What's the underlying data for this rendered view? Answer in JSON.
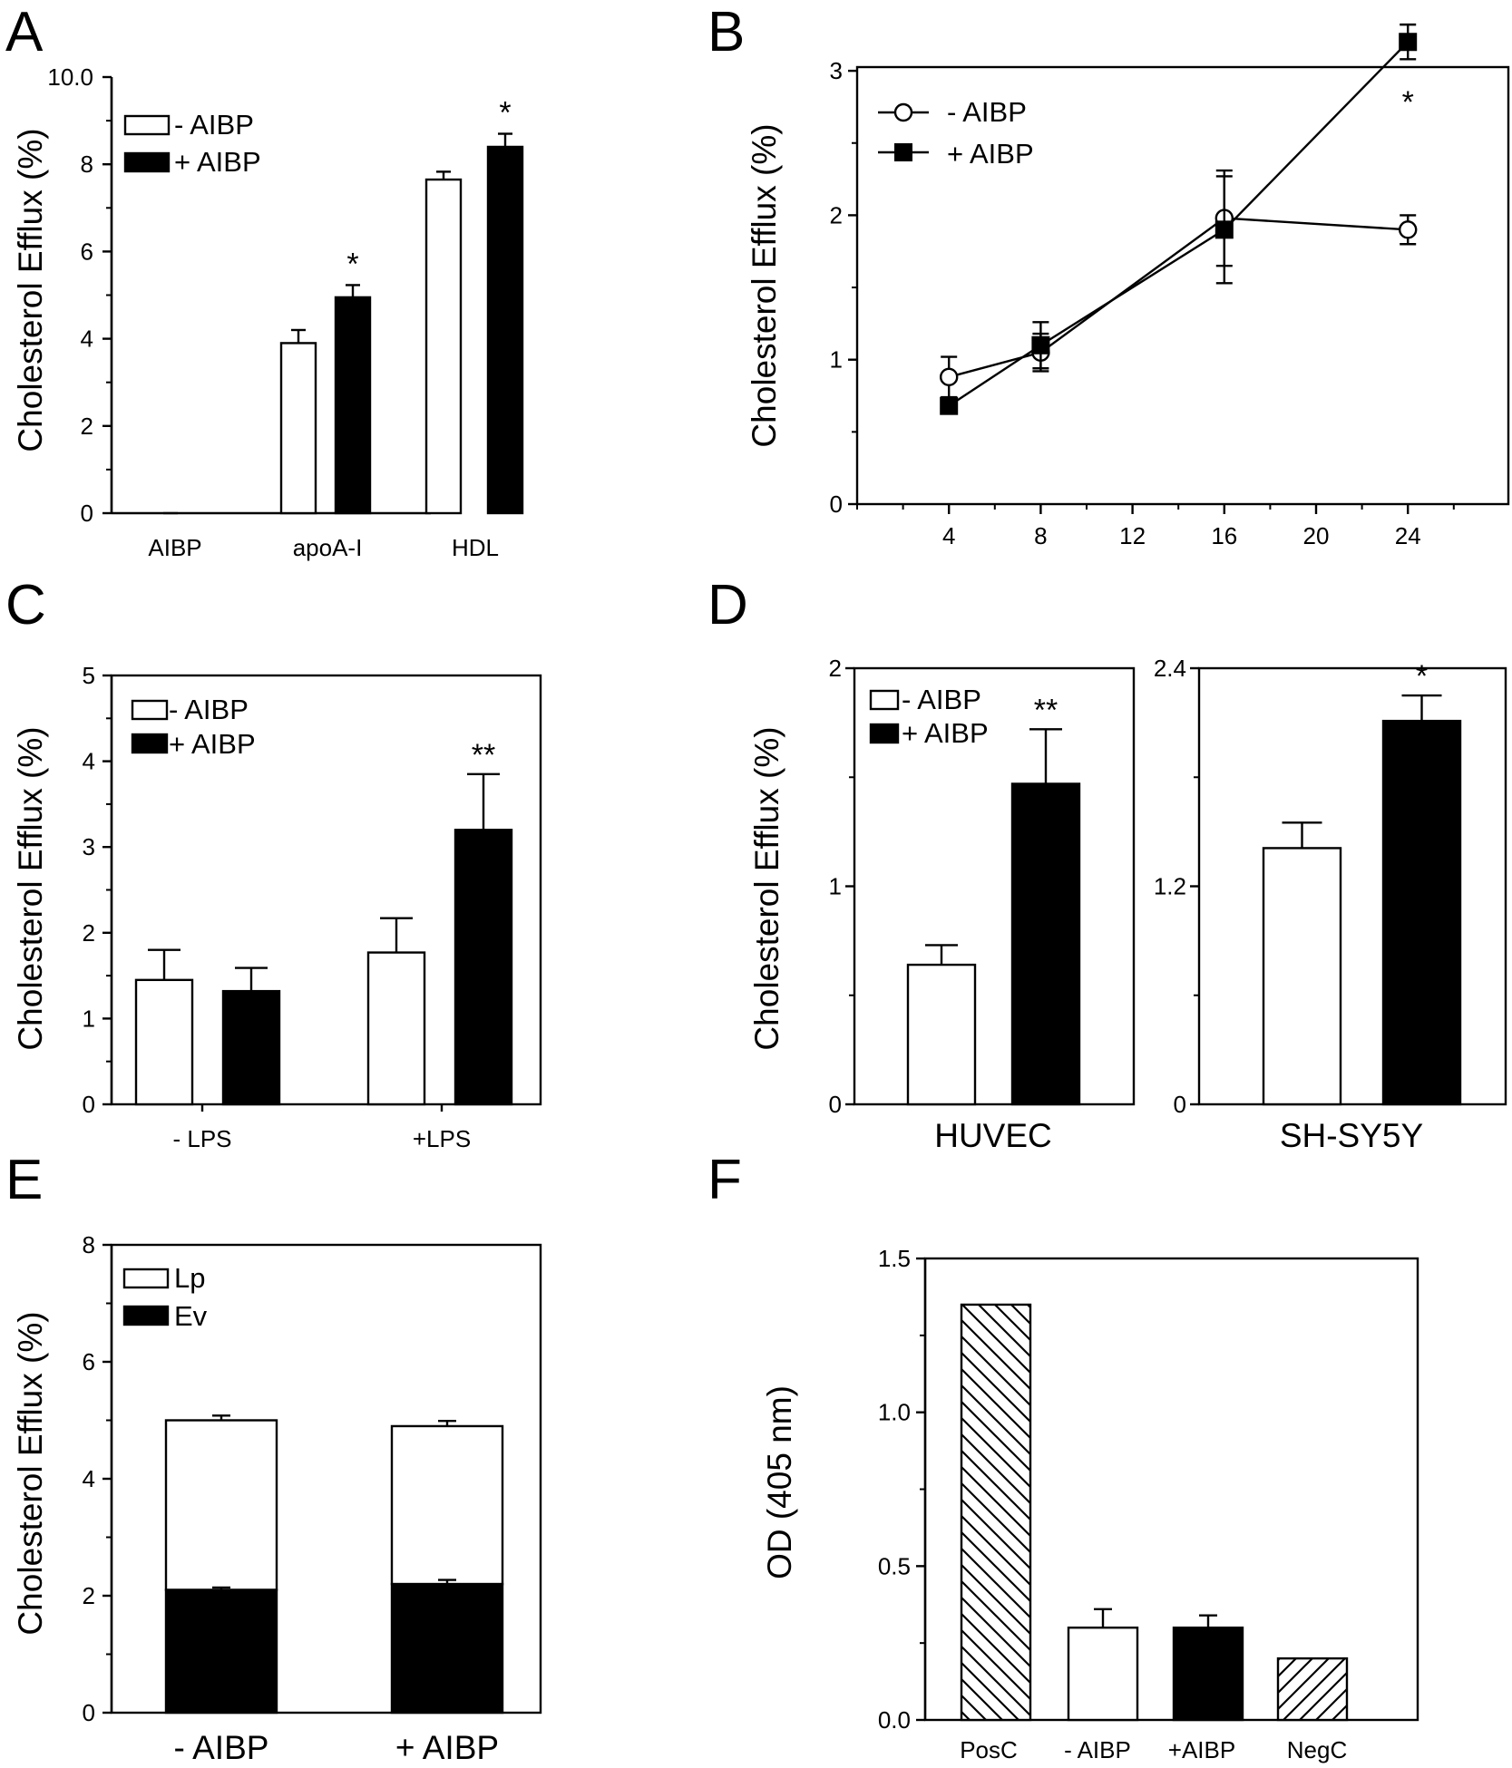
{
  "chart_data": [
    {
      "panel": "A",
      "type": "bar",
      "ylabel": "Cholesterol Efflux (%)",
      "ylim": [
        0,
        10
      ],
      "yticks": [
        0,
        2,
        4,
        6,
        8,
        10
      ],
      "ytick_labels": [
        "0",
        "2",
        "4",
        "6",
        "8",
        "10.0"
      ],
      "categories": [
        "AIBP",
        "apoA-I",
        "HDL"
      ],
      "series": [
        {
          "name": "- AIBP",
          "fill": "white",
          "values": [
            0,
            3.9,
            7.65
          ],
          "errors": [
            0,
            0.3,
            0.18
          ]
        },
        {
          "name": "+ AIBP",
          "fill": "black",
          "values": [
            0,
            4.95,
            8.4
          ],
          "errors": [
            0,
            0.28,
            0.3
          ]
        }
      ],
      "annotations": [
        {
          "category": 1,
          "series": 1,
          "text": "*"
        },
        {
          "category": 2,
          "series": 1,
          "text": "*"
        }
      ],
      "legend": "top-left"
    },
    {
      "panel": "B",
      "type": "line",
      "ylabel": "Cholesterol Efflux (%)",
      "xlim": [
        0,
        28
      ],
      "ylim": [
        0,
        3.5
      ],
      "xticks": [
        4,
        8,
        12,
        16,
        20,
        24
      ],
      "xtick_labels": [
        "4",
        "8",
        "12",
        "16",
        "20",
        "24"
      ],
      "yticks": [
        0,
        1,
        2,
        3
      ],
      "ytick_labels": [
        "0",
        "1",
        "2",
        "3"
      ],
      "series": [
        {
          "name": "- AIBP",
          "marker": "open-circle",
          "x": [
            4,
            8,
            16,
            24
          ],
          "y": [
            0.88,
            1.05,
            1.98,
            1.9
          ],
          "errors": [
            0.14,
            0.13,
            0.33,
            0.1
          ]
        },
        {
          "name": "+ AIBP",
          "marker": "filled-square",
          "x": [
            4,
            8,
            16,
            24
          ],
          "y": [
            0.68,
            1.1,
            1.9,
            3.2
          ],
          "errors": [
            0.05,
            0.16,
            0.37,
            0.12
          ]
        }
      ],
      "annotations": [
        {
          "x": 24,
          "text": "*"
        }
      ],
      "legend": "top-left"
    },
    {
      "panel": "C",
      "type": "bar",
      "ylabel": "Cholesterol Efflux (%)",
      "ylim": [
        0,
        5
      ],
      "yticks": [
        0,
        1,
        2,
        3,
        4,
        5
      ],
      "ytick_labels": [
        "0",
        "1",
        "2",
        "3",
        "4",
        "5"
      ],
      "categories": [
        "- LPS",
        "+LPS"
      ],
      "series": [
        {
          "name": "- AIBP",
          "fill": "white",
          "values": [
            1.45,
            1.77
          ],
          "errors": [
            0.35,
            0.4
          ]
        },
        {
          "name": "+ AIBP",
          "fill": "black",
          "values": [
            1.32,
            3.2
          ],
          "errors": [
            0.27,
            0.65
          ]
        }
      ],
      "annotations": [
        {
          "category": 1,
          "series": 1,
          "text": "**"
        }
      ],
      "legend": "top-left"
    },
    {
      "panel": "D",
      "type": "bar",
      "ylabel": "Cholesterol Efflux (%)",
      "subplots": [
        {
          "category": "HUVEC",
          "ylim": [
            0,
            2
          ],
          "yticks": [
            0,
            1,
            2
          ],
          "ytick_labels": [
            "0",
            "1",
            "2"
          ],
          "series": [
            {
              "name": "- AIBP",
              "fill": "white",
              "value": 0.64,
              "error": 0.09
            },
            {
              "name": "+ AIBP",
              "fill": "black",
              "value": 1.47,
              "error": 0.25
            }
          ],
          "annotation": "**"
        },
        {
          "category": "SH-SY5Y",
          "ylim": [
            0,
            2.4
          ],
          "yticks": [
            0,
            1.2,
            2.4
          ],
          "ytick_labels": [
            "0",
            "1.2",
            "2.4"
          ],
          "series": [
            {
              "name": "- AIBP",
              "fill": "white",
              "value": 1.41,
              "error": 0.14
            },
            {
              "name": "+ AIBP",
              "fill": "black",
              "value": 2.11,
              "error": 0.14
            }
          ],
          "annotation": "*"
        }
      ],
      "legend": "top-left"
    },
    {
      "panel": "E",
      "type": "stacked-bar",
      "ylabel": "Cholesterol Efflux (%)",
      "ylim": [
        0,
        8
      ],
      "yticks": [
        0,
        2,
        4,
        6,
        8
      ],
      "ytick_labels": [
        "0",
        "2",
        "4",
        "6",
        "8"
      ],
      "categories": [
        "- AIBP",
        "+ AIBP"
      ],
      "series": [
        {
          "name": "Ev",
          "fill": "black",
          "values": [
            2.1,
            2.2
          ],
          "errors": [
            0.04,
            0.07
          ]
        },
        {
          "name": "Lp",
          "fill": "white",
          "values": [
            2.9,
            2.7
          ],
          "errors": [
            0.08,
            0.09
          ]
        }
      ],
      "totals": [
        5.0,
        4.9
      ],
      "legend": "top-left"
    },
    {
      "panel": "F",
      "type": "bar",
      "ylabel": "OD (405 nm)",
      "ylim": [
        0,
        1.5
      ],
      "yticks": [
        0,
        0.5,
        1.0,
        1.5
      ],
      "ytick_labels": [
        "0.0",
        "0.5",
        "1.0",
        "1.5"
      ],
      "categories": [
        "PosC",
        "- AIBP",
        "+AIBP",
        "NegC"
      ],
      "values": [
        1.35,
        0.3,
        0.3,
        0.2
      ],
      "errors": [
        0,
        0.06,
        0.04,
        0
      ],
      "fills": [
        "hatch-back",
        "white",
        "black",
        "hatch-fwd"
      ]
    }
  ]
}
